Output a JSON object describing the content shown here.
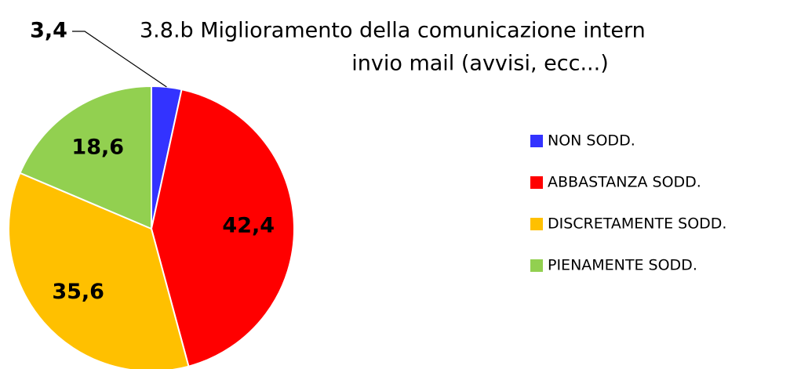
{
  "chart_data": {
    "type": "pie",
    "title": [
      "3.8.b  Miglioramento della comunicazione intern",
      "invio mail  (avvisi, ecc...)"
    ],
    "categories": [
      "NON SODD.",
      "ABBASTANZA SODD.",
      "DISCRETAMENTE SODD.",
      "PIENAMENTE SODD."
    ],
    "values": [
      3.4,
      42.4,
      35.6,
      18.6
    ],
    "value_labels": [
      "3,4",
      "42,4",
      "35,6",
      "18,6"
    ],
    "colors": [
      "#3333ff",
      "#ff0000",
      "#ffc000",
      "#92d050"
    ],
    "legend": "right"
  }
}
